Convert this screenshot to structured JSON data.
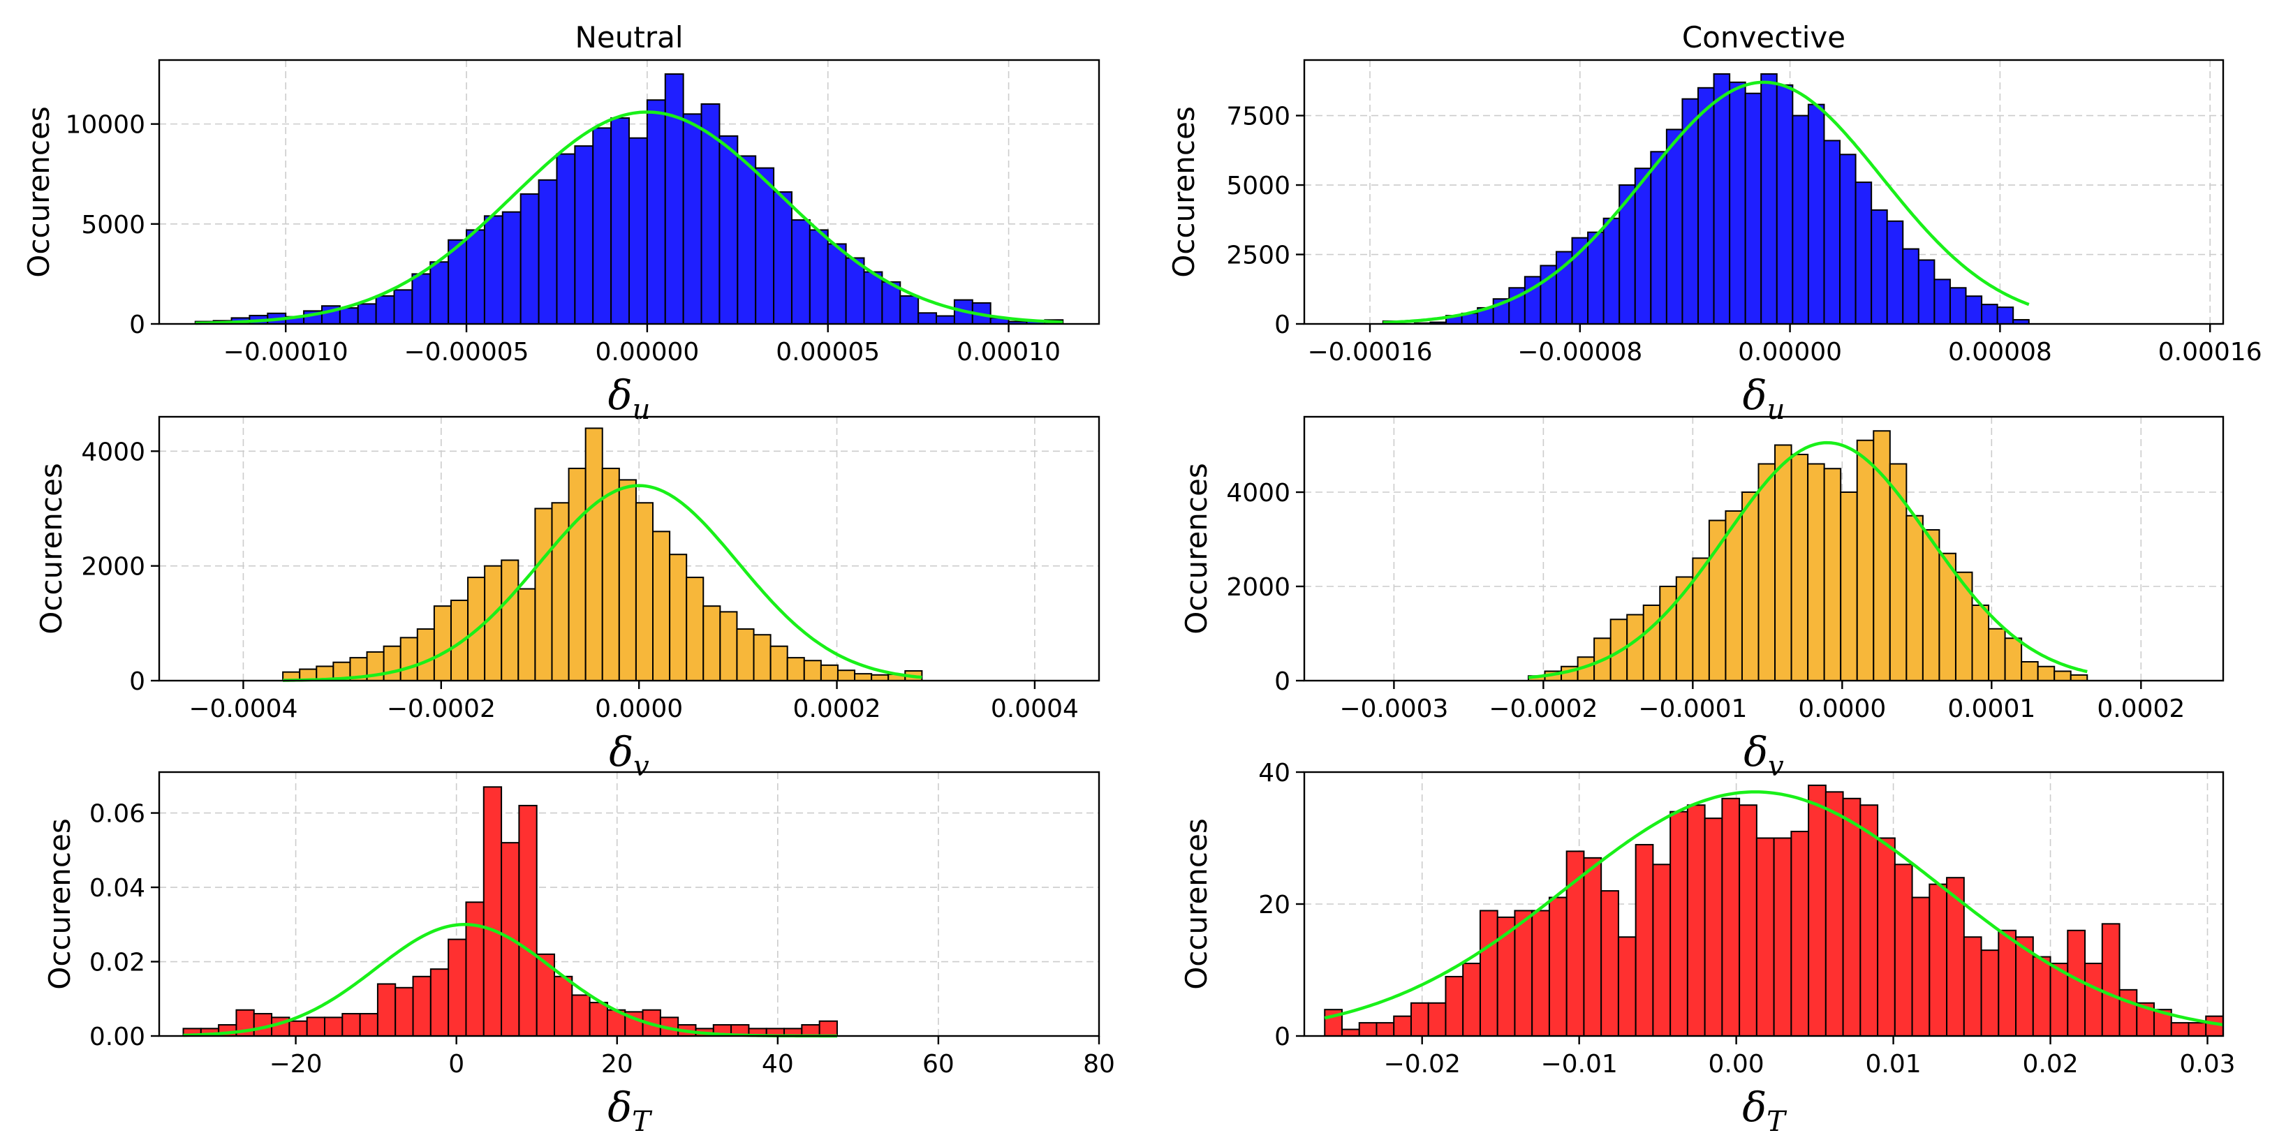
{
  "chart_data": [
    {
      "type": "bar",
      "panel": "neutral-u",
      "title": "Neutral",
      "xlabel": "δ_u",
      "xlabel_main": "δ",
      "xlabel_sub": "u",
      "ylabel": "Occurences",
      "color": "#1f1fff",
      "xlim": [
        -0.000135,
        0.000125
      ],
      "ylim": [
        0,
        13200
      ],
      "xticks": [
        -0.0001,
        -5e-05,
        0.0,
        5e-05,
        0.0001
      ],
      "xtick_labels": [
        "−0.00010",
        "−0.00005",
        "0.00000",
        "0.00005",
        "0.00010"
      ],
      "yticks": [
        0,
        5000,
        10000
      ],
      "ytick_labels": [
        "0",
        "5000",
        "10000"
      ],
      "bin_start": -0.000125,
      "bin_width": 5e-06,
      "values": [
        120,
        160,
        300,
        420,
        530,
        360,
        650,
        900,
        800,
        1000,
        1400,
        1700,
        2500,
        3100,
        4200,
        4700,
        5400,
        5600,
        6500,
        7200,
        8500,
        8900,
        9800,
        10300,
        9300,
        11200,
        12500,
        10500,
        11000,
        9400,
        8400,
        7800,
        6600,
        5200,
        4700,
        4000,
        3300,
        2600,
        2100,
        1400,
        550,
        400,
        1200,
        1050,
        300,
        120,
        150,
        200
      ],
      "fit": {
        "amplitude": 10600,
        "mean": 0.0,
        "sigma": 3.7e-05
      }
    },
    {
      "type": "bar",
      "panel": "convective-u",
      "title": "Convective",
      "xlabel": "δ_u",
      "xlabel_main": "δ",
      "xlabel_sub": "u",
      "ylabel": "Occurences",
      "color": "#1f1fff",
      "xlim": [
        -0.000185,
        0.000165
      ],
      "ylim": [
        0,
        9500
      ],
      "xticks": [
        -0.00016,
        -8e-05,
        0.0,
        8e-05,
        0.00016
      ],
      "xtick_labels": [
        "−0.00016",
        "−0.00008",
        "0.00000",
        "0.00008",
        "0.00016"
      ],
      "yticks": [
        0,
        2500,
        5000,
        7500
      ],
      "ytick_labels": [
        "0",
        "2500",
        "5000",
        "7500"
      ],
      "bin_start": -0.000155,
      "bin_width": 6e-06,
      "values": [
        100,
        0,
        30,
        60,
        300,
        380,
        580,
        900,
        1300,
        1700,
        2100,
        2600,
        3100,
        3300,
        3800,
        5000,
        5600,
        6200,
        7000,
        8100,
        8500,
        9000,
        8700,
        8300,
        9000,
        8600,
        7500,
        7900,
        6600,
        6100,
        5100,
        4100,
        3700,
        2700,
        2300,
        1600,
        1300,
        1000,
        700,
        600,
        150
      ],
      "fit": {
        "amplitude": 8700,
        "mean": -1e-05,
        "sigma": 4.5e-05
      }
    },
    {
      "type": "bar",
      "panel": "neutral-v",
      "xlabel": "δ_v",
      "xlabel_main": "δ",
      "xlabel_sub": "v",
      "ylabel": "Occurences",
      "color": "#f7b73a",
      "xlim": [
        -0.000485,
        0.000465
      ],
      "ylim": [
        0,
        4600
      ],
      "xticks": [
        -0.0004,
        -0.0002,
        0.0,
        0.0002,
        0.0004
      ],
      "xtick_labels": [
        "−0.0004",
        "−0.0002",
        "0.0000",
        "0.0002",
        "0.0004"
      ],
      "yticks": [
        0,
        2000,
        4000
      ],
      "ytick_labels": [
        "0",
        "2000",
        "4000"
      ],
      "bin_start": -0.00036,
      "bin_width": 1.7e-05,
      "values": [
        150,
        200,
        250,
        320,
        400,
        500,
        600,
        750,
        900,
        1300,
        1400,
        1800,
        2000,
        2100,
        1600,
        3000,
        3100,
        3700,
        4400,
        3700,
        3500,
        3100,
        2600,
        2200,
        1800,
        1300,
        1200,
        900,
        800,
        600,
        400,
        350,
        270,
        180,
        120,
        100,
        110,
        170
      ],
      "fit": {
        "amplitude": 3400,
        "mean": 0.0,
        "sigma": 0.0001
      }
    },
    {
      "type": "bar",
      "panel": "convective-v",
      "xlabel": "δ_v",
      "xlabel_main": "δ",
      "xlabel_sub": "v",
      "ylabel": "Occurences",
      "color": "#f7b73a",
      "xlim": [
        -0.00036,
        0.000255
      ],
      "ylim": [
        0,
        5600
      ],
      "xticks": [
        -0.0003,
        -0.0002,
        -0.0001,
        0.0,
        0.0001,
        0.0002
      ],
      "xtick_labels": [
        "−0.0003",
        "−0.0002",
        "−0.0001",
        "0.0000",
        "0.0001",
        "0.0002"
      ],
      "yticks": [
        0,
        2000,
        4000
      ],
      "ytick_labels": [
        "0",
        "2000",
        "4000"
      ],
      "bin_start": -0.00021,
      "bin_width": 1.1e-05,
      "values": [
        100,
        200,
        300,
        500,
        900,
        1300,
        1400,
        1600,
        2000,
        2200,
        2600,
        3400,
        3600,
        4000,
        4600,
        5000,
        4800,
        4600,
        4500,
        4000,
        5100,
        5300,
        4600,
        3500,
        3200,
        2700,
        2300,
        1600,
        1100,
        900,
        400,
        300,
        200,
        120
      ],
      "fit": {
        "amplitude": 5050,
        "mean": -1e-05,
        "sigma": 6.8e-05
      }
    },
    {
      "type": "bar",
      "panel": "neutral-T",
      "xlabel": "δ_T",
      "xlabel_main": "δ",
      "xlabel_sub": "T",
      "ylabel": "Occurences",
      "color": "#ff3030",
      "xlim": [
        -37,
        80
      ],
      "ylim": [
        0,
        0.071
      ],
      "xticks": [
        -20,
        0,
        20,
        40,
        60,
        80
      ],
      "xtick_labels": [
        "−20",
        "0",
        "20",
        "40",
        "60",
        "80"
      ],
      "yticks": [
        0,
        0.02,
        0.04,
        0.06
      ],
      "ytick_labels": [
        "0.00",
        "0.02",
        "0.04",
        "0.06"
      ],
      "bin_start": -34,
      "bin_width": 2.2,
      "values": [
        0.002,
        0.002,
        0.003,
        0.007,
        0.006,
        0.005,
        0.004,
        0.005,
        0.005,
        0.006,
        0.006,
        0.014,
        0.013,
        0.016,
        0.018,
        0.026,
        0.036,
        0.067,
        0.052,
        0.062,
        0.022,
        0.016,
        0.011,
        0.009,
        0.007,
        0.0065,
        0.007,
        0.005,
        0.003,
        0.002,
        0.003,
        0.003,
        0.002,
        0.002,
        0.002,
        0.003,
        0.004
      ],
      "fit": {
        "amplitude": 0.03,
        "mean": 1.0,
        "sigma": 11
      }
    },
    {
      "type": "bar",
      "panel": "convective-T",
      "xlabel": "δ_T",
      "xlabel_main": "δ",
      "xlabel_sub": "T",
      "ylabel": "Occurences",
      "color": "#ff3030",
      "xlim": [
        -0.0275,
        0.031
      ],
      "ylim": [
        0,
        40
      ],
      "xticks": [
        -0.02,
        -0.01,
        0.0,
        0.01,
        0.02,
        0.03
      ],
      "xtick_labels": [
        "−0.02",
        "−0.01",
        "0.00",
        "0.01",
        "0.02",
        "0.03"
      ],
      "yticks": [
        0,
        20,
        40
      ],
      "ytick_labels": [
        "0",
        "20",
        "40"
      ],
      "bin_start": -0.0262,
      "bin_width": 0.0011,
      "values": [
        4,
        1,
        2,
        2,
        3,
        5,
        5,
        9,
        11,
        19,
        18,
        19,
        19,
        21,
        28,
        27,
        22,
        15,
        29,
        26,
        34,
        35,
        33,
        36,
        35,
        30,
        30,
        31,
        38,
        37,
        36,
        35,
        30,
        26,
        21,
        23,
        24,
        15,
        13,
        16,
        15,
        12,
        11,
        16,
        11,
        17,
        7,
        5,
        4,
        2,
        2,
        3
      ],
      "fit": {
        "amplitude": 37,
        "mean": 0.0012,
        "sigma": 0.012
      }
    }
  ]
}
